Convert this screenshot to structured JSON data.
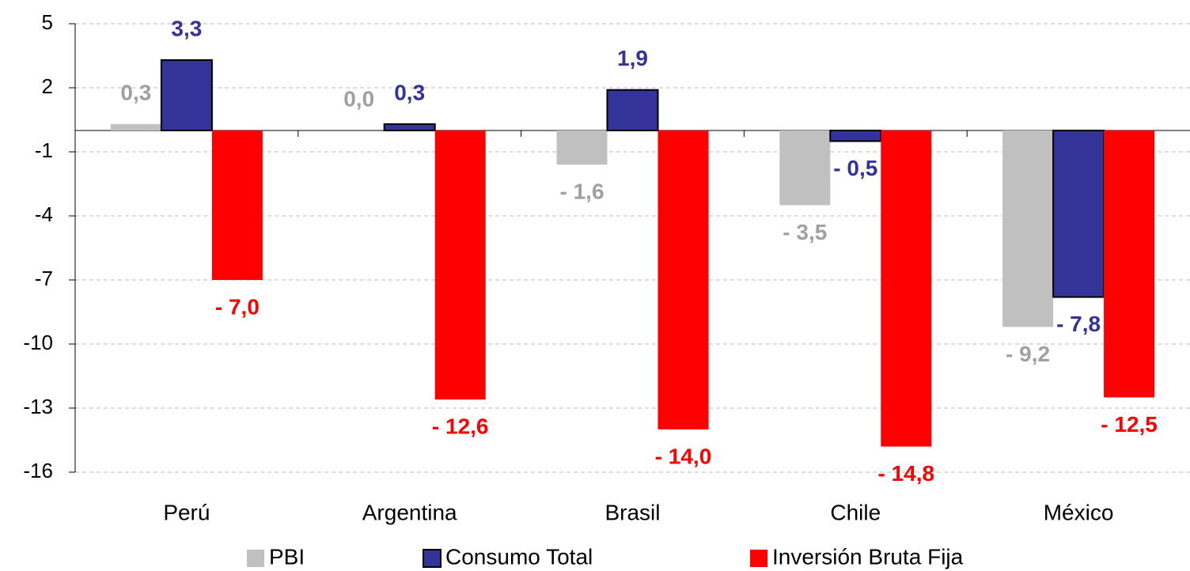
{
  "chart_data": {
    "type": "bar",
    "categories": [
      "Perú",
      "Argentina",
      "Brasil",
      "Chile",
      "México"
    ],
    "series": [
      {
        "name": "PBI",
        "color": "#c0c0c0",
        "values": [
          0.3,
          0.0,
          -1.6,
          -3.5,
          -9.2
        ],
        "value_labels": [
          "0,3",
          "0,0",
          "- 1,6",
          "- 3,5",
          "- 9,2"
        ]
      },
      {
        "name": "Consumo Total",
        "color": "#333399",
        "values": [
          3.3,
          0.3,
          1.9,
          -0.5,
          -7.8
        ],
        "value_labels": [
          "3,3",
          "0,3",
          "1,9",
          "- 0,5",
          "- 7,8"
        ]
      },
      {
        "name": "Inversión Bruta Fija",
        "color": "#ff0000",
        "values": [
          -7.0,
          -12.6,
          -14.0,
          -14.8,
          -12.5
        ],
        "value_labels": [
          "- 7,0",
          "- 12,6",
          "- 14,0",
          "- 14,8",
          "- 12,5"
        ]
      }
    ],
    "ylim": [
      -16,
      5
    ],
    "yticks": [
      5,
      2,
      -1,
      -4,
      -7,
      -10,
      -13,
      -16
    ],
    "grid": true
  }
}
